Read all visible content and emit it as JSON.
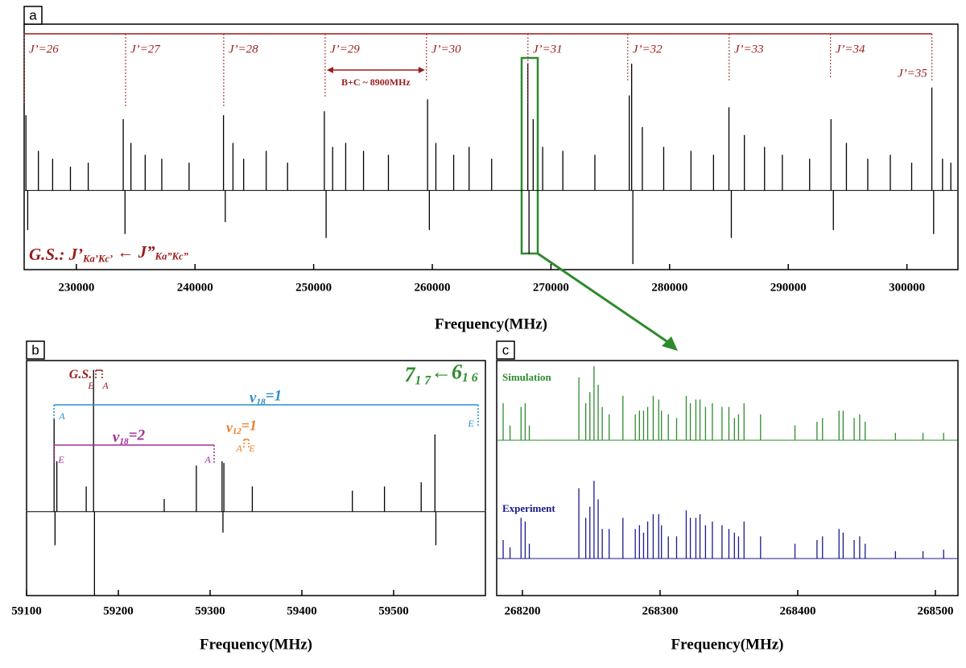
{
  "chart_data": [
    {
      "type": "stick",
      "panel": "a",
      "xlabel": "Frequency(MHz)",
      "color": "#000000",
      "xlim": [
        225600,
        304300
      ],
      "xticks": [
        230000,
        240000,
        250000,
        260000,
        270000,
        280000,
        290000,
        300000
      ],
      "ylim": [
        -1,
        2.1
      ],
      "x": [
        225750,
        225900,
        226800,
        228000,
        229500,
        231000,
        233950,
        234100,
        234600,
        235800,
        237200,
        239500,
        242400,
        242550,
        243200,
        244100,
        246000,
        247800,
        250900,
        251050,
        251600,
        252700,
        254200,
        256300,
        259600,
        259750,
        260300,
        261800,
        263100,
        265000,
        268050,
        268150,
        268500,
        269300,
        271000,
        273700,
        276600,
        276800,
        276900,
        277700,
        279500,
        281800,
        283700,
        285000,
        285200,
        286300,
        288000,
        289500,
        291800,
        293600,
        293800,
        294900,
        296700,
        298600,
        300400,
        302100,
        302250,
        303000,
        303700
      ],
      "values": [
        0.95,
        -0.5,
        0.5,
        0.4,
        0.3,
        0.35,
        0.9,
        -0.55,
        0.6,
        0.45,
        0.4,
        0.35,
        0.95,
        -0.4,
        0.6,
        0.4,
        0.5,
        0.35,
        1.0,
        -0.6,
        0.55,
        0.6,
        0.5,
        0.45,
        1.15,
        -0.5,
        0.6,
        0.45,
        0.55,
        0.4,
        1.6,
        -0.8,
        0.9,
        0.55,
        0.5,
        0.45,
        1.2,
        1.6,
        -0.93,
        0.8,
        0.55,
        0.5,
        0.45,
        1.05,
        -0.6,
        0.7,
        0.55,
        0.45,
        0.4,
        0.9,
        -0.5,
        0.6,
        0.4,
        0.45,
        0.35,
        1.3,
        -0.55,
        0.4,
        0.35
      ],
      "bands": [
        {
          "label": "J’=26",
          "x": 225600
        },
        {
          "label": "J’=27",
          "x": 234150
        },
        {
          "label": "J’=28",
          "x": 242420
        },
        {
          "label": "J’=29",
          "x": 250970
        },
        {
          "label": "J’=30",
          "x": 259510
        },
        {
          "label": "J’=31",
          "x": 268060
        },
        {
          "label": "J’=32",
          "x": 276470
        },
        {
          "label": "J’=33",
          "x": 285020
        },
        {
          "label": "J’=34",
          "x": 293560
        },
        {
          "label": "J’=35",
          "x": 302110
        }
      ],
      "spacing_label": "B+C ~ 8900MHz",
      "state": {
        "text": "G.S.: J’",
        "sub": "Ka’Kc’",
        "rest": " ← J”",
        "sub2": "Ka”Kc”"
      }
    },
    {
      "type": "stick",
      "panel": "b",
      "xlabel": "Frequency(MHz)",
      "color": "#000000",
      "xlim": [
        59100,
        59600
      ],
      "xticks": [
        59100,
        59200,
        59300,
        59400,
        59500
      ],
      "ylim": [
        -1,
        1.8
      ],
      "x": [
        59130,
        59131,
        59133,
        59165,
        59173,
        59174,
        59250,
        59285,
        59313,
        59315,
        59314,
        59346,
        59455,
        59490,
        59530,
        59545,
        59546
      ],
      "values": [
        1.1,
        -0.4,
        0.6,
        0.3,
        1.69,
        -1.0,
        0.15,
        0.55,
        0.6,
        0.58,
        -0.25,
        0.3,
        0.25,
        0.3,
        0.35,
        0.92,
        -0.4
      ],
      "transition": {
        "text": "7",
        "sub": "1 7",
        "rest": "←6",
        "sub2": "1 6"
      },
      "annotations": [
        {
          "text": "G.S."
        },
        {
          "text": "E"
        },
        {
          "text": "A"
        },
        {
          "text": "v",
          "sub": "18",
          "rest": "=1"
        },
        {
          "text": "A"
        },
        {
          "text": "E"
        },
        {
          "text": "v",
          "sub": "18",
          "rest": "=2"
        },
        {
          "text": "E"
        },
        {
          "text": "A"
        },
        {
          "text": "v",
          "sub": "12",
          "rest": "=1"
        },
        {
          "text": "A"
        },
        {
          "text": "E"
        }
      ]
    },
    {
      "type": "stick2",
      "panel": "c",
      "xlabel": "Frequency(MHz)",
      "xlim": [
        268181.3,
        268516.4
      ],
      "xticks": [
        268200,
        268300,
        268400,
        268500
      ],
      "ylim": [
        -0.5,
        1.0
      ],
      "x": [
        268186,
        268191,
        268199,
        268202,
        268205,
        268241,
        268246,
        268249,
        268252,
        268255,
        268258,
        268263,
        268273,
        268282,
        268285,
        268288,
        268291,
        268295,
        268299,
        268301,
        268306,
        268312,
        268319,
        268322,
        268326,
        268329,
        268333,
        268338,
        268345,
        268350,
        268354,
        268357,
        268361,
        268373,
        268398,
        268414,
        268418,
        268430,
        268433,
        268441,
        268445,
        268449,
        268471,
        268491,
        268506
      ],
      "series": [
        {
          "name": "Simulation",
          "color": "#2e8b2e",
          "values": [
            0.5,
            0.2,
            0.45,
            0.5,
            0.2,
            0.85,
            0.5,
            0.65,
            1.0,
            0.75,
            0.45,
            0.35,
            0.6,
            0.35,
            0.4,
            0.4,
            0.45,
            0.6,
            0.55,
            0.4,
            0.35,
            0.3,
            0.6,
            0.5,
            0.55,
            0.55,
            0.45,
            0.5,
            0.45,
            0.45,
            0.3,
            0.35,
            0.5,
            0.35,
            0.2,
            0.25,
            0.3,
            0.4,
            0.4,
            0.3,
            0.35,
            0.25,
            0.1,
            0.1,
            0.1
          ]
        },
        {
          "name": "Experiment",
          "color": "#1a1a8c",
          "values": [
            0.25,
            0.15,
            0.55,
            0.5,
            0.2,
            0.95,
            0.55,
            0.7,
            1.05,
            0.8,
            0.4,
            0.4,
            0.55,
            0.4,
            0.45,
            0.35,
            0.5,
            0.6,
            0.6,
            0.45,
            0.3,
            0.3,
            0.65,
            0.55,
            0.55,
            0.6,
            0.45,
            0.5,
            0.45,
            0.4,
            0.35,
            0.3,
            0.5,
            0.3,
            0.2,
            0.25,
            0.3,
            0.4,
            0.35,
            0.25,
            0.3,
            0.2,
            0.1,
            0.1,
            0.12
          ]
        }
      ]
    }
  ]
}
